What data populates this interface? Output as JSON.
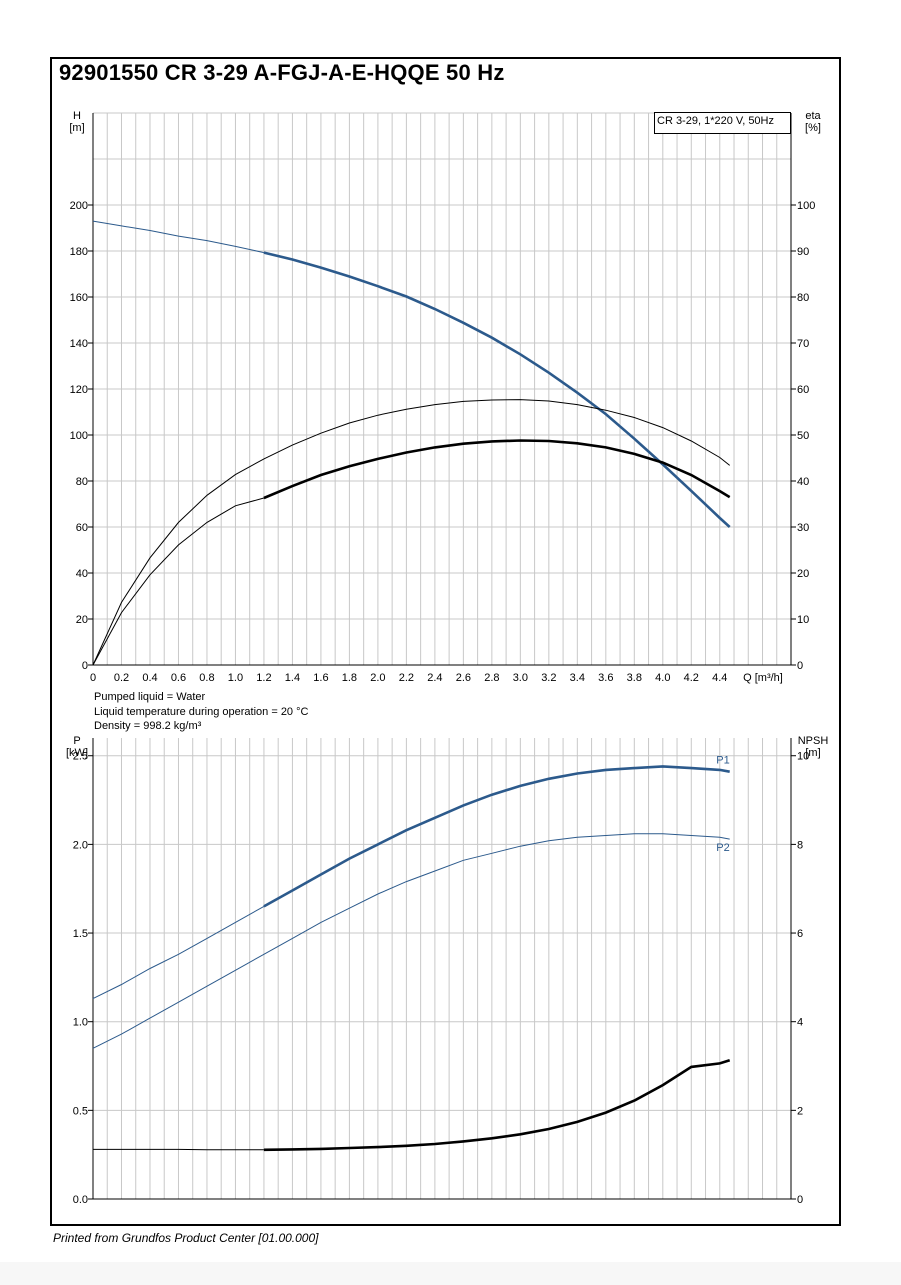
{
  "title": "92901550 CR 3-29 A-FGJ-A-E-HQQE 50 Hz",
  "footer": "Printed from Grundfos Product Center [01.00.000]",
  "pumped_info": [
    "Pumped liquid = Water",
    "Liquid temperature during operation = 20 °C",
    "Density = 998.2 kg/m³"
  ],
  "colors": {
    "blue": "#2c5a8c",
    "black": "#000000",
    "grid": "#c8c8c8"
  },
  "chart_data": [
    {
      "type": "line",
      "name": "head-efficiency",
      "legend": "CR 3-29, 1*220 V, 50Hz",
      "x_label": "Q [m³/h]",
      "x_ticks": [
        "0",
        "0.2",
        "0.4",
        "0.6",
        "0.8",
        "1.0",
        "1.2",
        "1.4",
        "1.6",
        "1.8",
        "2.0",
        "2.2",
        "2.4",
        "2.6",
        "2.8",
        "3.0",
        "3.2",
        "3.4",
        "3.6",
        "3.8",
        "4.0",
        "4.2",
        "4.4"
      ],
      "x_tick_values": [
        0,
        0.2,
        0.4,
        0.6,
        0.8,
        1.0,
        1.2,
        1.4,
        1.6,
        1.8,
        2.0,
        2.2,
        2.4,
        2.6,
        2.8,
        3.0,
        3.2,
        3.4,
        3.6,
        3.8,
        4.0,
        4.2,
        4.4
      ],
      "xlim": [
        0,
        4.9
      ],
      "left_axis": {
        "label_line1": "H",
        "label_line2": "[m]",
        "ylim": [
          0,
          240
        ],
        "ticks": [
          0,
          20,
          40,
          60,
          80,
          100,
          120,
          140,
          160,
          180,
          200
        ]
      },
      "right_axis": {
        "label_line1": "eta",
        "label_line2": "[%]",
        "ylim": [
          0,
          120
        ],
        "ticks": [
          0,
          10,
          20,
          30,
          40,
          50,
          60,
          70,
          80,
          90,
          100
        ]
      },
      "series": [
        {
          "name": "H",
          "axis": "left",
          "color": "#2c5a8c",
          "x": [
            0,
            0.2,
            0.4,
            0.6,
            0.8,
            1.0,
            1.2,
            1.4,
            1.6,
            1.8,
            2.0,
            2.2,
            2.4,
            2.6,
            2.8,
            3.0,
            3.2,
            3.4,
            3.6,
            3.8,
            4.0,
            4.2,
            4.4,
            4.47
          ],
          "y": [
            193,
            190.9,
            188.9,
            186.5,
            184.5,
            182,
            179.3,
            176.3,
            172.8,
            168.9,
            164.7,
            160.2,
            154.8,
            148.8,
            142.3,
            135.1,
            127.1,
            118.4,
            109.1,
            98.4,
            87.2,
            75.7,
            63.9,
            60
          ],
          "bold_from": 1.2
        },
        {
          "name": "eta",
          "axis": "right",
          "color": "#000000",
          "x": [
            0,
            0.2,
            0.4,
            0.6,
            0.8,
            1.0,
            1.2,
            1.4,
            1.6,
            1.8,
            2.0,
            2.2,
            2.4,
            2.6,
            2.8,
            3.0,
            3.2,
            3.4,
            3.6,
            3.8,
            4.0,
            4.2,
            4.4,
            4.47
          ],
          "y": [
            0,
            11.4,
            19.6,
            26.1,
            31.0,
            34.6,
            36.3,
            38.9,
            41.3,
            43.2,
            44.8,
            46.2,
            47.3,
            48.1,
            48.6,
            48.8,
            48.7,
            48.2,
            47.3,
            45.9,
            44.0,
            41.3,
            37.8,
            36.5
          ],
          "bold_from": 1.2
        },
        {
          "name": "eta-thin",
          "axis": "right",
          "color": "#000000",
          "x": [
            0,
            0.2,
            0.4,
            0.6,
            0.8,
            1.0,
            1.2,
            1.4,
            1.6,
            1.8,
            2.0,
            2.2,
            2.4,
            2.6,
            2.8,
            3.0,
            3.2,
            3.4,
            3.6,
            3.8,
            4.0,
            4.2,
            4.4,
            4.47
          ],
          "y": [
            0,
            13.6,
            23.3,
            31.0,
            36.9,
            41.4,
            44.8,
            47.8,
            50.4,
            52.6,
            54.3,
            55.6,
            56.6,
            57.3,
            57.6,
            57.7,
            57.4,
            56.6,
            55.4,
            53.8,
            51.6,
            48.7,
            45.1,
            43.4
          ],
          "bold_from": 99
        }
      ]
    },
    {
      "type": "line",
      "name": "power-npsh",
      "x_ticks": [],
      "xlim": [
        0,
        4.9
      ],
      "left_axis": {
        "label_line1": "P",
        "label_line2": "[kW]",
        "ylim": [
          0,
          2.6
        ],
        "ticks": [
          0,
          0.5,
          1.0,
          1.5,
          2.0,
          2.5
        ],
        "tick_labels": [
          "0.0",
          "0.5",
          "1.0",
          "1.5",
          "2.0",
          "2.5"
        ]
      },
      "right_axis": {
        "label_line1": "NPSH",
        "label_line2": "[m]",
        "ylim": [
          0,
          10.4
        ],
        "ticks": [
          0,
          2,
          4,
          6,
          8,
          10
        ]
      },
      "series": [
        {
          "name": "P1",
          "axis": "left",
          "color": "#2c5a8c",
          "x": [
            0,
            0.2,
            0.4,
            0.6,
            0.8,
            1.0,
            1.2,
            1.4,
            1.6,
            1.8,
            2.0,
            2.2,
            2.4,
            2.6,
            2.8,
            3.0,
            3.2,
            3.4,
            3.6,
            3.8,
            4.0,
            4.2,
            4.4,
            4.47
          ],
          "y": [
            1.13,
            1.21,
            1.3,
            1.38,
            1.47,
            1.56,
            1.65,
            1.74,
            1.83,
            1.92,
            2.0,
            2.08,
            2.15,
            2.22,
            2.28,
            2.33,
            2.37,
            2.4,
            2.42,
            2.43,
            2.44,
            2.43,
            2.42,
            2.41
          ],
          "bold_from": 1.2
        },
        {
          "name": "P2",
          "axis": "left",
          "color": "#2c5a8c",
          "x": [
            0,
            0.2,
            0.4,
            0.6,
            0.8,
            1.0,
            1.2,
            1.4,
            1.6,
            1.8,
            2.0,
            2.2,
            2.4,
            2.6,
            2.8,
            3.0,
            3.2,
            3.4,
            3.6,
            3.8,
            4.0,
            4.2,
            4.4,
            4.47
          ],
          "y": [
            0.85,
            0.93,
            1.02,
            1.11,
            1.2,
            1.29,
            1.38,
            1.47,
            1.56,
            1.64,
            1.72,
            1.79,
            1.85,
            1.91,
            1.95,
            1.99,
            2.02,
            2.04,
            2.05,
            2.06,
            2.06,
            2.05,
            2.04,
            2.03
          ],
          "bold_from": 99
        },
        {
          "name": "NPSH",
          "axis": "right",
          "color": "#000000",
          "x": [
            0,
            0.2,
            0.4,
            0.6,
            0.8,
            1.0,
            1.2,
            1.4,
            1.6,
            1.8,
            2.0,
            2.2,
            2.4,
            2.6,
            2.8,
            3.0,
            3.2,
            3.4,
            3.6,
            3.8,
            4.0,
            4.2,
            4.4,
            4.47
          ],
          "y": [
            1.12,
            1.12,
            1.12,
            1.12,
            1.11,
            1.11,
            1.11,
            1.12,
            1.13,
            1.15,
            1.17,
            1.2,
            1.24,
            1.3,
            1.37,
            1.46,
            1.58,
            1.74,
            1.95,
            2.22,
            2.57,
            2.98,
            3.06,
            3.13
          ],
          "bold_from": 1.2
        }
      ],
      "series_labels": [
        "P1",
        "P2"
      ]
    }
  ]
}
